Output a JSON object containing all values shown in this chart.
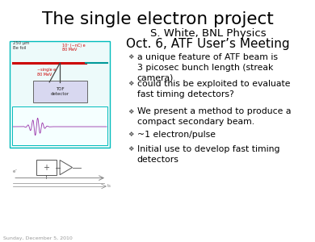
{
  "title": "The single electron project",
  "subtitle1": "S. White, BNL Physics",
  "subtitle2": "Oct. 6, ATF User’s Meeting",
  "bullets": [
    "a unique feature of ATF beam is\n3 picosec bunch length (streak\ncamera)",
    "could this be exploited to evaluate\nfast timing detectors?",
    "We present a method to produce a\ncompact secondary beam.",
    "~1 electron/pulse",
    "Initial use to develop fast timing\ndetectors"
  ],
  "footer": "Sunday, December 5, 2010",
  "bg_color": "#ffffff",
  "title_color": "#000000",
  "subtitle_color": "#000000",
  "bullet_color": "#000000",
  "footer_color": "#999999",
  "title_fontsize": 15.5,
  "subtitle1_fontsize": 9.5,
  "subtitle2_fontsize": 11.0,
  "bullet_fontsize": 7.8,
  "footer_fontsize": 4.5
}
